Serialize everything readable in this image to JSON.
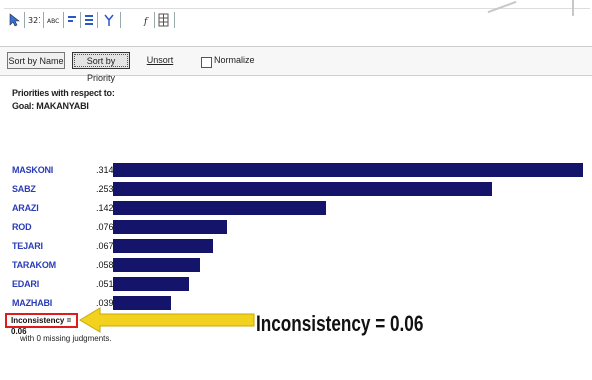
{
  "toolbar": {
    "icons": [
      "pointer-icon",
      "sort-123-icon",
      "sort-abc-icon",
      "filter-icon",
      "list-icon",
      "tree-icon",
      "formula-icon",
      "grid-icon"
    ],
    "tool_labels": [
      "1⁠2⁠3",
      "ABC",
      "f",
      "x"
    ]
  },
  "buttons": {
    "sort_by_name": "Sort by Name",
    "sort_by_priority": "Sort by Priority",
    "unsort": "Unsort",
    "normalize": "Normalize"
  },
  "header": {
    "line1": "Priorities with respect to:",
    "line2": "Goal: MAKANYABI"
  },
  "chart_data": {
    "type": "bar",
    "orientation": "horizontal",
    "categories": [
      "MASKONI",
      "SABZ",
      "ARAZI",
      "ROD",
      "TEJARI",
      "TARAKOM",
      "EDARI",
      "MAZHABI"
    ],
    "value_labels": [
      ".314",
      ".253",
      ".142",
      ".076",
      ".067",
      ".058",
      ".051",
      ".039"
    ],
    "values": [
      0.314,
      0.253,
      0.142,
      0.076,
      0.067,
      0.058,
      0.051,
      0.039
    ],
    "bar_color": "#14146a",
    "label_color": "#2a3cb8"
  },
  "inconsistency": {
    "box_text": "Inconsistency = 0.06",
    "missing_text": "with 0  missing judgments.",
    "callout_text": "Inconsistency = 0.06",
    "box_color": "#e01b1b",
    "arrow_color": "#f3d21f"
  }
}
